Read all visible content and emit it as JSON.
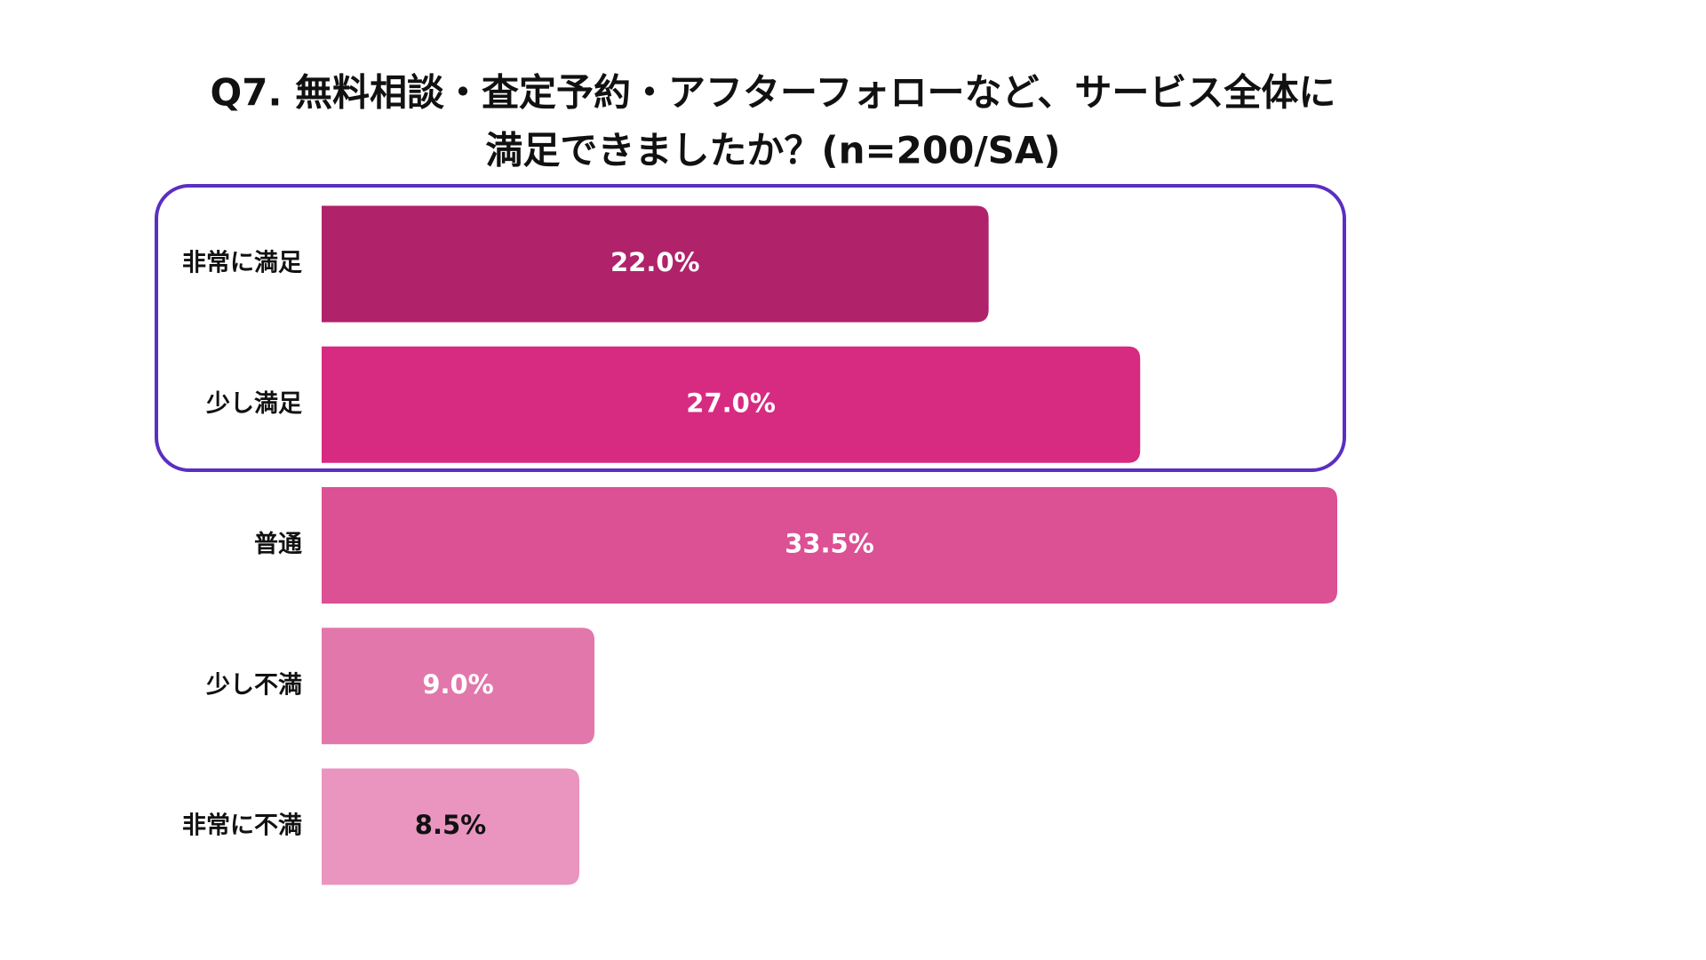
{
  "chart_data": {
    "type": "barh",
    "title": [
      "Q7. 無料相談・査定予約・アフターフォローなど、サービス全体に",
      "満足できましたか？(n=200/SA)"
    ],
    "categories": [
      "非常に満足",
      "少し満足",
      "普通",
      "少し不満",
      "非常に不満"
    ],
    "values": [
      22.0,
      27.0,
      33.5,
      9.0,
      8.5
    ],
    "value_labels": [
      "22.0%",
      "27.0%",
      "33.5%",
      "9.0%",
      "8.5%"
    ],
    "colors": [
      "#b0226a",
      "#d62b80",
      "#dc5094",
      "#e277ab",
      "#e995c0"
    ]
  }
}
